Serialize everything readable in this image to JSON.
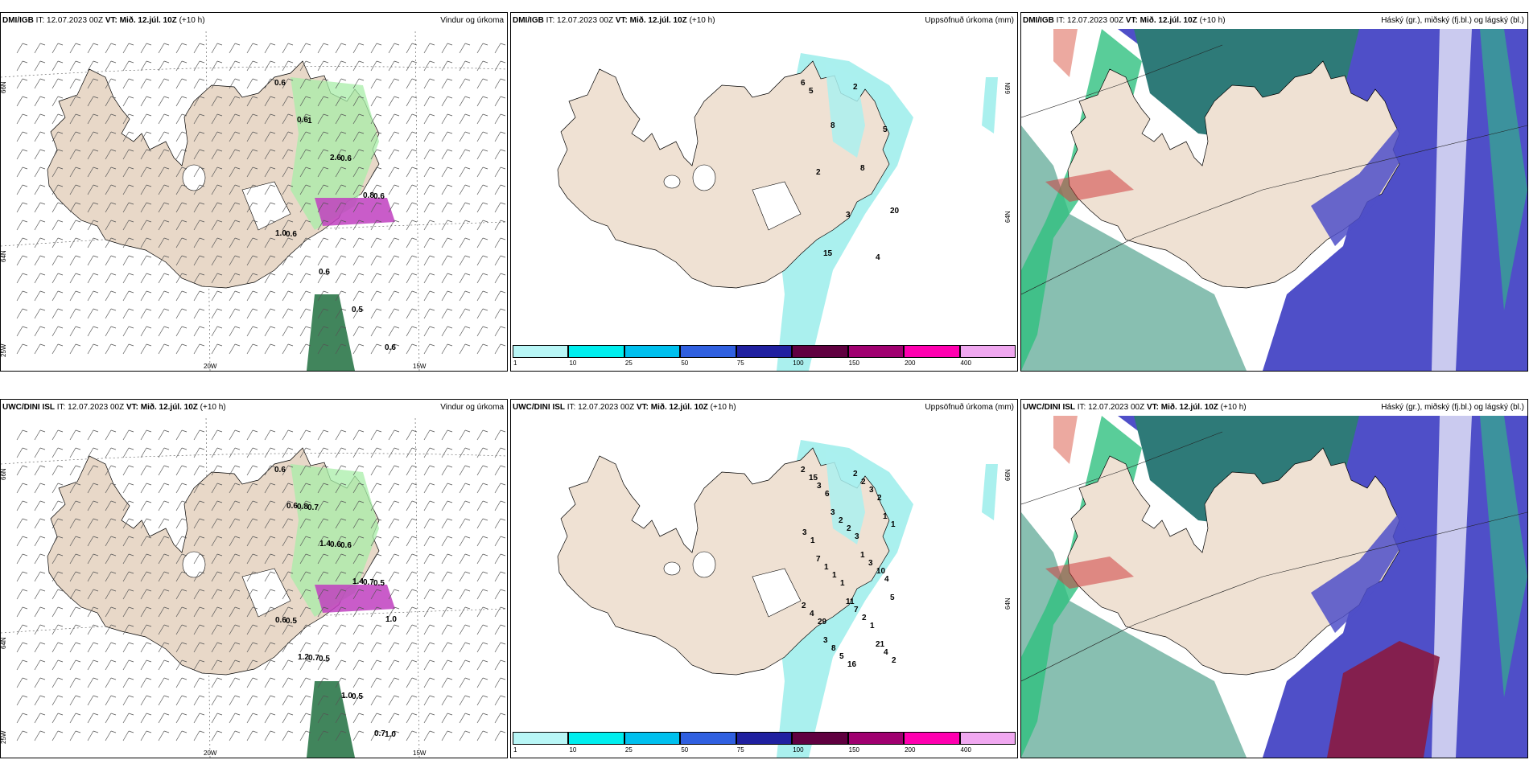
{
  "panels": [
    {
      "model": "DMI/IGB",
      "it": "IT: 12.07.2023 00Z",
      "vt_label": "VT:",
      "vt": "Mið. 12.júl. 10Z",
      "lead": "(+10 h)",
      "product": "Vindur og úrkoma",
      "type": "wind",
      "values": [
        "0.6",
        "1",
        "0.6",
        "0.6",
        "0.6",
        "0.6",
        "0.5",
        "0.6",
        "0.6",
        "2.6",
        "0.8",
        "1.0"
      ],
      "axis": {
        "lat1": "66N",
        "lat2": "64N",
        "lat3": "25W",
        "lon1": "20W",
        "lon2": "15W"
      }
    },
    {
      "model": "DMI/IGB",
      "it": "IT: 12.07.2023 00Z",
      "vt_label": "VT:",
      "vt": "Mið. 12.júl. 10Z",
      "lead": "(+10 h)",
      "product": "Uppsöfnuð úrkoma (mm)",
      "type": "precip",
      "values": [
        "6",
        "8",
        "8",
        "20",
        "15",
        "2",
        "5",
        "2",
        "3",
        "4",
        "5"
      ],
      "axis": {
        "lat1": "66N",
        "lat2": "64N"
      }
    },
    {
      "model": "DMI/IGB",
      "it": "IT: 12.07.2023 00Z",
      "vt_label": "VT:",
      "vt": "Mið. 12.júl. 10Z",
      "lead": "(+10 h)",
      "product": "Háský (gr.), miðský (fj.bl.) og lágský (bl.)",
      "type": "cloud"
    },
    {
      "model": "UWC/DINI ISL",
      "it": "IT: 12.07.2023 00Z",
      "vt_label": "VT:",
      "vt": "Mið. 12.júl. 10Z",
      "lead": "(+10 h)",
      "product": "Vindur og úrkoma",
      "type": "wind",
      "values": [
        "0.6",
        "0.7",
        "0.6",
        "0.5",
        "0.5",
        "0.5",
        "0.5",
        "1.0",
        "0.8",
        "0.6",
        "0.7",
        "0.6",
        "0.7",
        "1.0",
        "0.7",
        "0.6",
        "1.4",
        "1.4",
        "1.0",
        "1.2"
      ],
      "axis": {
        "lat1": "66N",
        "lat2": "64N",
        "lat3": "25W",
        "lon1": "20W",
        "lon2": "15W"
      }
    },
    {
      "model": "UWC/DINI ISL",
      "it": "IT: 12.07.2023 00Z",
      "vt_label": "VT:",
      "vt": "Mið. 12.júl. 10Z",
      "lead": "(+10 h)",
      "product": "Uppsöfnuð úrkoma (mm)",
      "type": "precip",
      "values": [
        "2",
        "3",
        "1",
        "5",
        "3",
        "2",
        "1",
        "7",
        "11",
        "21",
        "15",
        "2",
        "3",
        "2",
        "8",
        "2",
        "1",
        "1",
        "7",
        "4",
        "3",
        "2",
        "10",
        "4",
        "5",
        "3",
        "3",
        "1",
        "2",
        "2",
        "6",
        "3",
        "4",
        "29",
        "16",
        "2",
        "1",
        "1",
        "1"
      ],
      "axis": {
        "lat1": "66N",
        "lat2": "64N"
      }
    },
    {
      "model": "UWC/DINI ISL",
      "it": "IT: 12.07.2023 00Z",
      "vt_label": "VT:",
      "vt": "Mið. 12.júl. 10Z",
      "lead": "(+10 h)",
      "product": "Háský (gr.), miðský (fj.bl.) og lágský (bl.)",
      "type": "cloud"
    }
  ],
  "colorbar": {
    "ticks": [
      "1",
      "10",
      "25",
      "50",
      "75",
      "100",
      "150",
      "200",
      "400"
    ],
    "colors": [
      "#b8f6f6",
      "#00eeee",
      "#00c0ee",
      "#3060e0",
      "#2020a0",
      "#600040",
      "#a00070",
      "#ff00b0",
      "#f0a8f0"
    ]
  },
  "colors": {
    "land": "#efe1d3",
    "wind_land": "#e8d8c8",
    "precip_light": "#aaf0ee",
    "green": "#a8eea8",
    "dark_green": "#207040",
    "magenta": "#c040c0",
    "cloud_high": "#2e7a78",
    "cloud_mid": "#4f4fc8",
    "cloud_low": "#30c080"
  }
}
